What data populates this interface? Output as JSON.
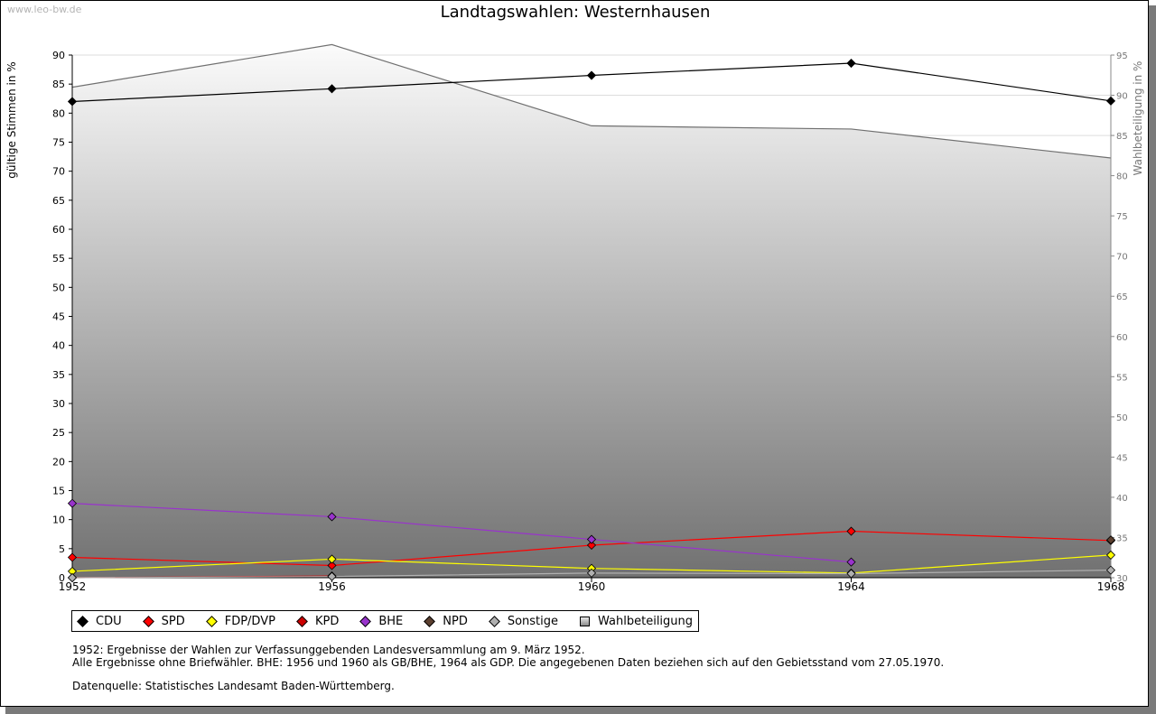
{
  "site_label": "www.leo-bw.de",
  "chart_data": {
    "type": "line",
    "title": "Landtagswahlen: Westernhausen",
    "ylabel": "gültige Stimmen in %",
    "y2label": "Wahlbeteiligung in %",
    "ylim": [
      0,
      90
    ],
    "y2lim": [
      30,
      95
    ],
    "x": [
      "1952",
      "1956",
      "1960",
      "1964",
      "1968"
    ],
    "yticks": [
      0,
      5,
      10,
      15,
      20,
      25,
      30,
      35,
      40,
      45,
      50,
      55,
      60,
      65,
      70,
      75,
      80,
      85,
      90
    ],
    "y2ticks": [
      30,
      35,
      40,
      45,
      50,
      55,
      60,
      65,
      70,
      75,
      80,
      85,
      90,
      95
    ],
    "series": [
      {
        "name": "CDU",
        "color": "#000000",
        "values": [
          82.0,
          84.2,
          86.5,
          88.6,
          82.1
        ]
      },
      {
        "name": "SPD",
        "color": "#ff0000",
        "values": [
          3.5,
          2.1,
          5.6,
          8.0,
          6.4
        ]
      },
      {
        "name": "FDP/DVP",
        "color": "#ffff00",
        "values": [
          1.1,
          3.2,
          1.6,
          0.8,
          3.9
        ]
      },
      {
        "name": "KPD",
        "color": "#cc0000",
        "values": [
          0.0,
          0.3,
          null,
          null,
          null
        ]
      },
      {
        "name": "BHE",
        "color": "#9933cc",
        "values": [
          12.8,
          10.5,
          6.6,
          2.7,
          null
        ]
      },
      {
        "name": "NPD",
        "color": "#5c4030",
        "values": [
          null,
          null,
          null,
          null,
          6.5
        ]
      },
      {
        "name": "Sonstige",
        "color": "#b0b0b0",
        "values": [
          0.0,
          0.2,
          0.8,
          0.7,
          1.3
        ]
      }
    ],
    "turnout": {
      "name": "Wahlbeteiligung",
      "axis": "right",
      "values": [
        91.0,
        96.3,
        86.2,
        85.8,
        82.2
      ]
    }
  },
  "notes": {
    "line1": "1952: Ergebnisse der Wahlen zur Verfassunggebenden Landesversammlung am 9. März 1952.",
    "line2": "Alle Ergebnisse ohne Briefwähler. BHE: 1956 und 1960 als GB/BHE, 1964 als GDP. Die angegebenen Daten beziehen sich auf den Gebietsstand vom 27.05.1970.",
    "line3": "Datenquelle: Statistisches Landesamt Baden-Württemberg."
  }
}
